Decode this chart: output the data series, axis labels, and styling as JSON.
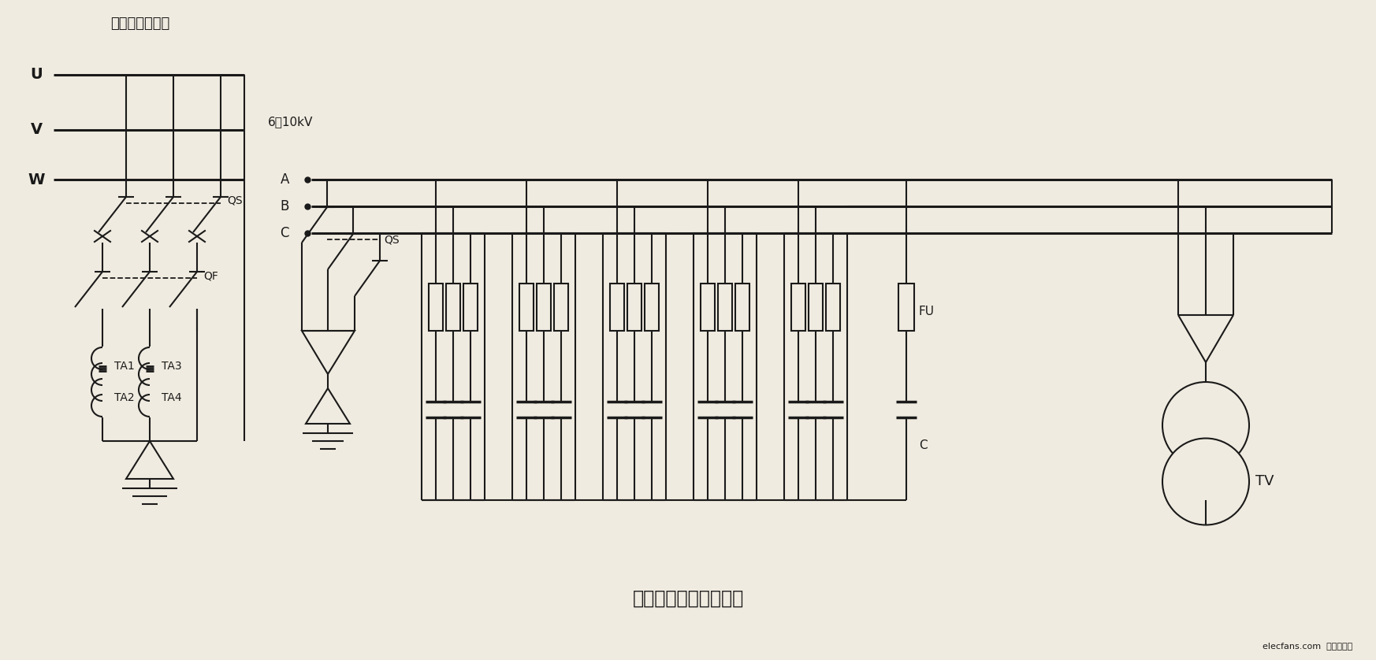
{
  "bg_color": "#f0ebe0",
  "line_color": "#1a1a1a",
  "title": "高压集中补偿电容电路",
  "subtitle": "变电所高压母线",
  "voltage": "6～10kV",
  "watermark": "elecfans.com  电子发烧友",
  "figw": 17.46,
  "figh": 8.38
}
